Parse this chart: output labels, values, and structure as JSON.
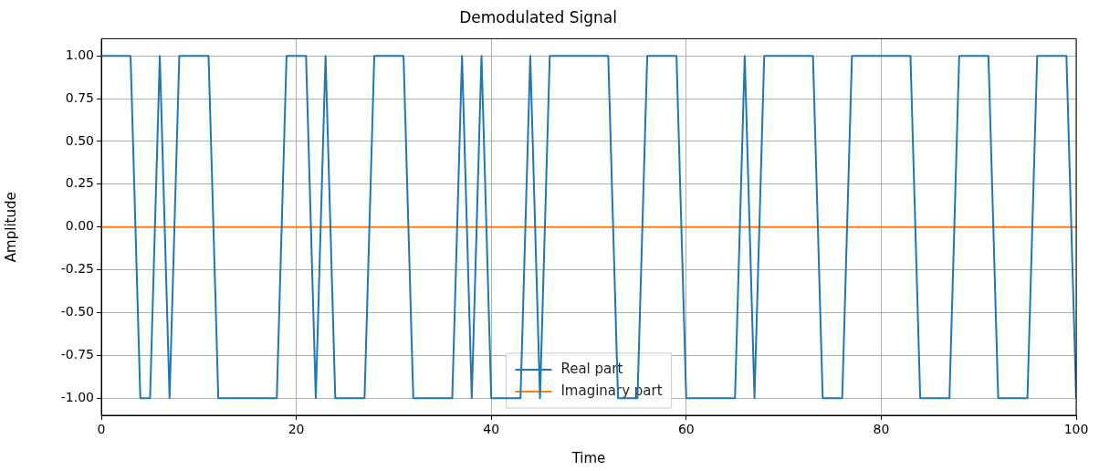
{
  "chart_data": {
    "type": "line",
    "title": "Demodulated Signal",
    "xlabel": "Time",
    "ylabel": "Amplitude",
    "x": [
      0,
      1,
      2,
      3,
      4,
      5,
      6,
      7,
      8,
      9,
      10,
      11,
      12,
      13,
      14,
      15,
      16,
      17,
      18,
      19,
      20,
      21,
      22,
      23,
      24,
      25,
      26,
      27,
      28,
      29,
      30,
      31,
      32,
      33,
      34,
      35,
      36,
      37,
      38,
      39,
      40,
      41,
      42,
      43,
      44,
      45,
      46,
      47,
      48,
      49,
      50,
      51,
      52,
      53,
      54,
      55,
      56,
      57,
      58,
      59,
      60,
      61,
      62,
      63,
      64,
      65,
      66,
      67,
      68,
      69,
      70,
      71,
      72,
      73,
      74,
      75,
      76,
      77,
      78,
      79,
      80,
      81,
      82,
      83,
      84,
      85,
      86,
      87,
      88,
      89,
      90,
      91,
      92,
      93,
      94,
      95,
      96,
      97,
      98,
      99,
      100
    ],
    "series": [
      {
        "name": "Real part",
        "color": "#1f77b4",
        "values": [
          1,
          1,
          1,
          1,
          -1,
          -1,
          1,
          -1,
          1,
          1,
          1,
          1,
          -1,
          -1,
          -1,
          -1,
          -1,
          -1,
          -1,
          1,
          1,
          1,
          -1,
          1,
          -1,
          -1,
          -1,
          -1,
          1,
          1,
          1,
          1,
          -1,
          -1,
          -1,
          -1,
          -1,
          1,
          -1,
          1,
          -1,
          -1,
          -1,
          -1,
          1,
          -1,
          1,
          1,
          1,
          1,
          1,
          1,
          1,
          -1,
          -1,
          -1,
          1,
          1,
          1,
          1,
          -1,
          -1,
          -1,
          -1,
          -1,
          -1,
          1,
          -1,
          1,
          1,
          1,
          1,
          1,
          1,
          -1,
          -1,
          -1,
          1,
          1,
          1,
          1,
          1,
          1,
          1,
          -1,
          -1,
          -1,
          -1,
          1,
          1,
          1,
          1,
          -1,
          -1,
          -1,
          -1,
          1,
          1,
          1,
          1,
          -1
        ]
      },
      {
        "name": "Imaginary part",
        "color": "#ff7f0e",
        "values": [
          0,
          0,
          0,
          0,
          0,
          0,
          0,
          0,
          0,
          0,
          0,
          0,
          0,
          0,
          0,
          0,
          0,
          0,
          0,
          0,
          0,
          0,
          0,
          0,
          0,
          0,
          0,
          0,
          0,
          0,
          0,
          0,
          0,
          0,
          0,
          0,
          0,
          0,
          0,
          0,
          0,
          0,
          0,
          0,
          0,
          0,
          0,
          0,
          0,
          0,
          0,
          0,
          0,
          0,
          0,
          0,
          0,
          0,
          0,
          0,
          0,
          0,
          0,
          0,
          0,
          0,
          0,
          0,
          0,
          0,
          0,
          0,
          0,
          0,
          0,
          0,
          0,
          0,
          0,
          0,
          0,
          0,
          0,
          0,
          0,
          0,
          0,
          0,
          0,
          0,
          0,
          0,
          0,
          0,
          0,
          0,
          0,
          0,
          0,
          0,
          0
        ]
      }
    ],
    "xlim": [
      0,
      100
    ],
    "xticks": [
      0,
      20,
      40,
      60,
      80,
      100
    ],
    "ylim": [
      -1.1,
      1.1
    ],
    "yticks": [
      {
        "value": -1,
        "label": "-1.00"
      },
      {
        "value": -0.75,
        "label": "-0.75"
      },
      {
        "value": -0.5,
        "label": "-0.50"
      },
      {
        "value": -0.25,
        "label": "-0.25"
      },
      {
        "value": 0,
        "label": "0.00"
      },
      {
        "value": 0.25,
        "label": "0.25"
      },
      {
        "value": 0.5,
        "label": "0.50"
      },
      {
        "value": 0.75,
        "label": "0.75"
      },
      {
        "value": 1,
        "label": "1.00"
      }
    ],
    "grid": true,
    "legend": "bottom"
  }
}
